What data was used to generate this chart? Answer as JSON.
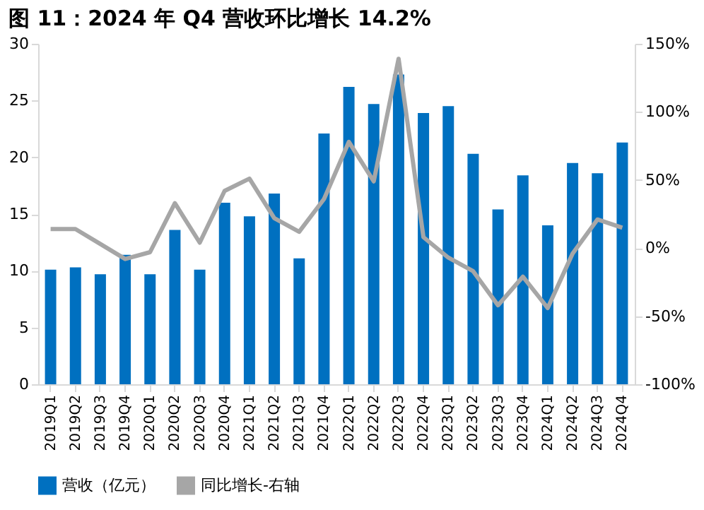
{
  "chart_data": {
    "type": "bar",
    "title": "图 11：2024 年 Q4 营收环比增长 14.2%",
    "categories": [
      "2019Q1",
      "2019Q2",
      "2019Q3",
      "2019Q4",
      "2020Q1",
      "2020Q2",
      "2020Q3",
      "2020Q4",
      "2021Q1",
      "2021Q2",
      "2021Q3",
      "2021Q4",
      "2022Q1",
      "2022Q2",
      "2022Q3",
      "2022Q4",
      "2023Q1",
      "2023Q2",
      "2023Q3",
      "2023Q4",
      "2024Q1",
      "2024Q2",
      "2024Q3",
      "2024Q4"
    ],
    "series": [
      {
        "name": "营收（亿元）",
        "color": "#0070c0",
        "values": [
          10.1,
          10.3,
          9.7,
          11.4,
          9.7,
          13.6,
          10.1,
          16.0,
          14.8,
          16.8,
          11.1,
          22.1,
          26.2,
          24.7,
          27.3,
          23.9,
          24.5,
          20.3,
          15.4,
          18.4,
          14.0,
          19.5,
          18.6,
          21.3
        ]
      },
      {
        "name": "同比增长-右轴",
        "type": "line",
        "axis": "y2",
        "color": "#a6a6a6",
        "values": [
          14,
          14,
          3,
          -8,
          -3,
          33,
          4,
          42,
          51,
          22,
          12,
          36,
          78,
          49,
          139,
          8,
          -7,
          -17,
          -42,
          -21,
          -44,
          -4,
          21,
          15
        ]
      }
    ],
    "ylim": [
      0,
      30
    ],
    "yticks": [
      0,
      5,
      10,
      15,
      20,
      25,
      30
    ],
    "y2lim": [
      -100,
      150
    ],
    "y2ticks": [
      {
        "value": -100,
        "label": "-100%"
      },
      {
        "value": -50,
        "label": "-50%"
      },
      {
        "value": 0,
        "label": "0%"
      },
      {
        "value": 50,
        "label": "50%"
      },
      {
        "value": 100,
        "label": "100%"
      },
      {
        "value": 150,
        "label": "150%"
      }
    ],
    "grid": false,
    "legend": "bottom",
    "marker": "none",
    "line_style": "solid"
  }
}
